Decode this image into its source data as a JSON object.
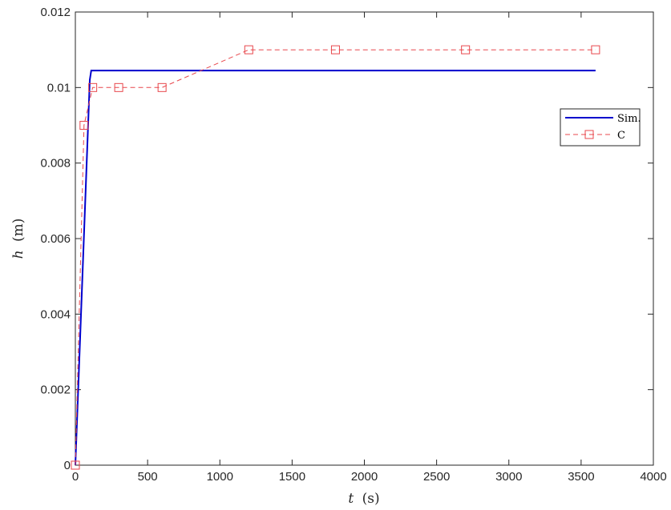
{
  "chart_data": {
    "type": "line",
    "title": "",
    "xlabel_var": "t",
    "xlabel_unit": "(s)",
    "ylabel_var": "h",
    "ylabel_unit": "(m)",
    "xlim": [
      0,
      4000
    ],
    "ylim": [
      0,
      0.012
    ],
    "xticks": [
      0,
      500,
      1000,
      1500,
      2000,
      2500,
      3000,
      3500,
      4000
    ],
    "xtick_labels": [
      "0",
      "500",
      "1000",
      "1500",
      "2000",
      "2500",
      "3000",
      "3500",
      "4000"
    ],
    "yticks": [
      0,
      0.002,
      0.004,
      0.006,
      0.008,
      0.01,
      0.012
    ],
    "ytick_labels": [
      "0",
      "0.002",
      "0.004",
      "0.006",
      "0.008",
      "0.01",
      "0.012"
    ],
    "grid": false,
    "legend_position": "upper-right",
    "series": [
      {
        "name": "Sim.",
        "style": "solid",
        "marker": "none",
        "color": "#0000cd",
        "x": [
          0,
          100,
          110,
          3600
        ],
        "y": [
          0,
          0.0102,
          0.01045,
          0.01045
        ]
      },
      {
        "name": "C",
        "style": "dashed",
        "marker": "square",
        "color": "#e8474c",
        "x": [
          0,
          60,
          120,
          300,
          600,
          1200,
          1800,
          2700,
          3600
        ],
        "y": [
          0,
          0.009,
          0.01,
          0.01,
          0.01,
          0.011,
          0.011,
          0.011,
          0.011
        ]
      }
    ]
  }
}
